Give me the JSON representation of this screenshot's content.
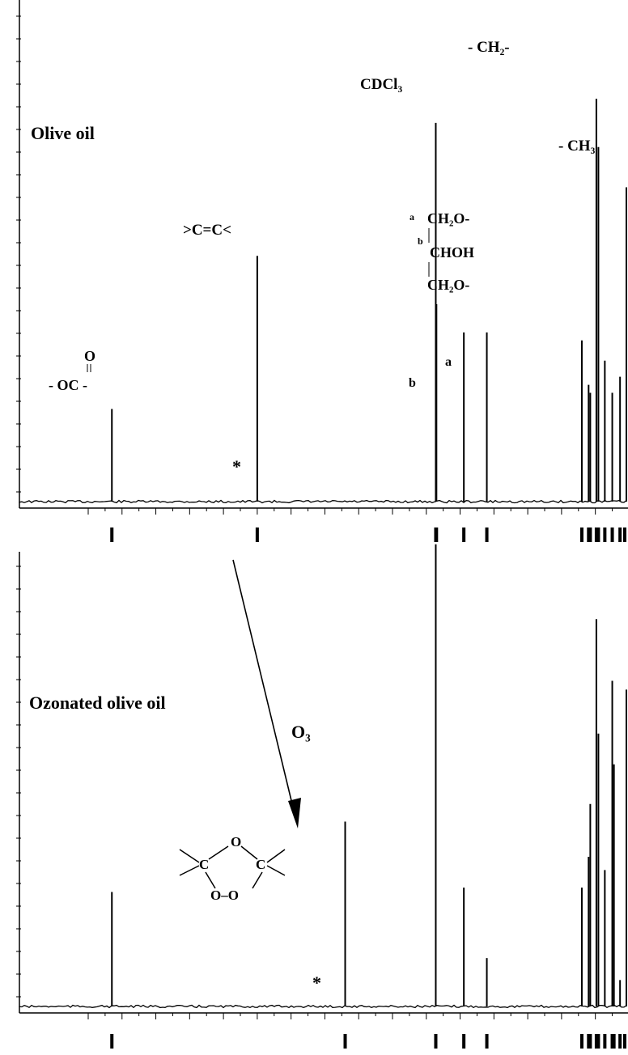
{
  "chart_data": [
    {
      "type": "line",
      "title": "Olive oil",
      "xlabel": "",
      "ylabel": "",
      "xlim": [
        180,
        0
      ],
      "peaks": [
        {
          "ppm": 173.0,
          "height": 0.23,
          "label": "- OC -",
          "label_top": "O"
        },
        {
          "ppm": 130.0,
          "height": 0.61,
          "label": ">C=C<"
        },
        {
          "ppm": 77.2,
          "height": 0.94,
          "label": "CDCl3"
        },
        {
          "ppm": 77.0,
          "height": 0.49
        },
        {
          "ppm": 68.9,
          "height": 0.42,
          "label": "b"
        },
        {
          "ppm": 62.1,
          "height": 0.42,
          "label": "a"
        },
        {
          "ppm": 34.0,
          "height": 0.4
        },
        {
          "ppm": 32.0,
          "height": 0.29
        },
        {
          "ppm": 31.5,
          "height": 0.27
        },
        {
          "ppm": 29.7,
          "height": 1.0,
          "label": "-CH2-"
        },
        {
          "ppm": 29.1,
          "height": 0.88
        },
        {
          "ppm": 27.2,
          "height": 0.35
        },
        {
          "ppm": 25.0,
          "height": 0.27
        },
        {
          "ppm": 22.7,
          "height": 0.31
        },
        {
          "ppm": 14.1,
          "height": 0.78,
          "label": "-CH3"
        }
      ],
      "annotations": [
        "*",
        "CH2O-",
        "CHOH",
        "CH2O-",
        "a",
        "b"
      ]
    },
    {
      "type": "line",
      "title": "Ozonated olive oil",
      "xlabel": "",
      "ylabel": "",
      "xlim": [
        180,
        0
      ],
      "peaks": [
        {
          "ppm": 173.0,
          "height": 0.26
        },
        {
          "ppm": 104.0,
          "height": 0.42
        },
        {
          "ppm": 77.2,
          "height": 1.05
        },
        {
          "ppm": 68.9,
          "height": 0.27
        },
        {
          "ppm": 62.1,
          "height": 0.11
        },
        {
          "ppm": 34.0,
          "height": 0.27
        },
        {
          "ppm": 32.0,
          "height": 0.34
        },
        {
          "ppm": 31.5,
          "height": 0.46
        },
        {
          "ppm": 29.7,
          "height": 0.88
        },
        {
          "ppm": 29.1,
          "height": 0.62
        },
        {
          "ppm": 27.2,
          "height": 0.31
        },
        {
          "ppm": 25.0,
          "height": 0.74
        },
        {
          "ppm": 24.5,
          "height": 0.55
        },
        {
          "ppm": 22.7,
          "height": 0.06
        },
        {
          "ppm": 14.1,
          "height": 0.72
        }
      ],
      "annotations": [
        "O3",
        "*"
      ]
    }
  ],
  "labels": {
    "top_title": "Olive oil",
    "bottom_title": "Ozonated olive oil",
    "ch2": "- CH₂-",
    "ch3": "- CH₃",
    "cdcl3": "CDCl₃",
    "alkene": ">C=C<",
    "carbonyl_o": "O",
    "carbonyl": "- OC -",
    "glycerol_1": "CH₂O-",
    "glycerol_2": "CHOH",
    "glycerol_3": "CH₂O-",
    "glycerol_a": "a",
    "glycerol_b": "b",
    "peak_a": "a",
    "peak_b": "b",
    "star": "*",
    "ozone": "O₃",
    "ozonide_o_top": "O",
    "ozonide_c1": "C",
    "ozonide_c2": "C",
    "ozonide_oo": "O–O"
  }
}
